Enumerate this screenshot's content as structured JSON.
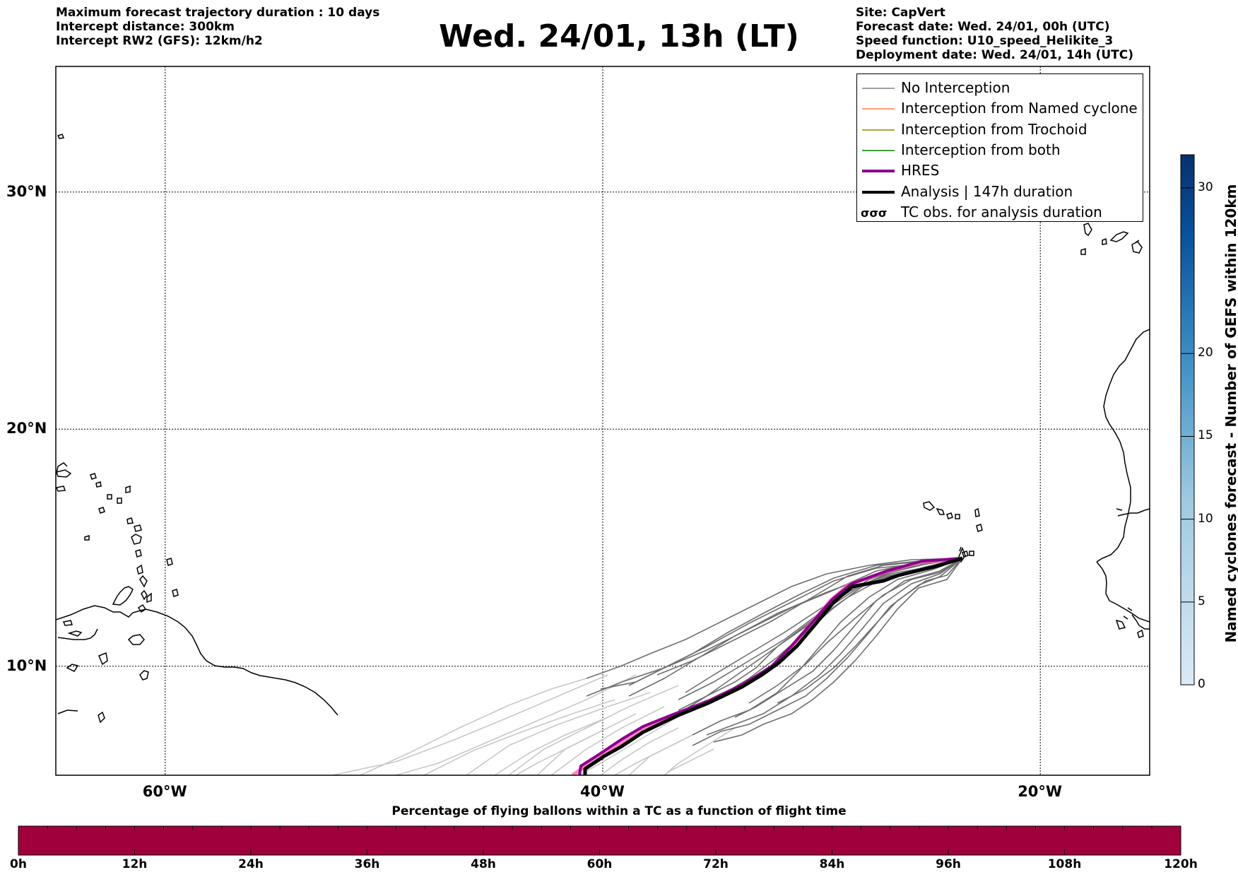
{
  "header": {
    "left": [
      "Maximum forecast trajectory duration : 10 days",
      "Intercept distance: 300km",
      "Intercept RW2 (GFS):  12km/h2"
    ],
    "title": "Wed. 24/01, 13h (LT)",
    "right": [
      "Site: CapVert",
      "Forecast date: Wed. 24/01, 00h (UTC)",
      "Speed function: U10_speed_Helikite_3",
      "Deployment date: Wed. 24/01, 14h (UTC)"
    ]
  },
  "map": {
    "lat_labels": [
      "30°N",
      "20°N",
      "10°N"
    ],
    "lon_labels": [
      "60°W",
      "40°W",
      "20°W"
    ],
    "lat_values": [
      30,
      20,
      10
    ],
    "lon_values": [
      -60,
      -40,
      -20
    ],
    "extent": {
      "lon_min": -65,
      "lon_max": -15,
      "lat_min": 5.4,
      "lat_max": 35.3
    }
  },
  "legend": {
    "items": [
      {
        "label": "No Interception",
        "color": "#808080",
        "kind": "thin"
      },
      {
        "label": "Interception from Named cyclone",
        "color": "#ff7f50",
        "kind": "thin"
      },
      {
        "label": "Interception from Trochoid",
        "color": "#8b8b00",
        "kind": "thin"
      },
      {
        "label": "Interception from both",
        "color": "#008000",
        "kind": "thin"
      },
      {
        "label": "HRES",
        "color": "#8b008b",
        "kind": "thick"
      },
      {
        "label": "Analysis | 147h duration",
        "color": "#000000",
        "kind": "thick"
      },
      {
        "label": "TC obs. for analysis duration",
        "color": "#000000",
        "kind": "tc-symbol"
      }
    ]
  },
  "colorbar": {
    "title": "Named cyclones forecast - Number of GEFS within 120km",
    "ticks": [
      "0",
      "5",
      "10",
      "15",
      "20",
      "30"
    ],
    "tick_values": [
      0,
      5,
      10,
      15,
      20,
      30
    ],
    "range": [
      0,
      32
    ],
    "color_low": "#dbe9f6",
    "color_high": "#08306b"
  },
  "flight_bar": {
    "title": "Percentage of flying ballons within a TC as a function of flight time",
    "color": "#a0003c",
    "ticks": [
      "0h",
      "12h",
      "24h",
      "36h",
      "48h",
      "60h",
      "72h",
      "84h",
      "96h",
      "108h",
      "120h"
    ],
    "max_hours": 120
  }
}
